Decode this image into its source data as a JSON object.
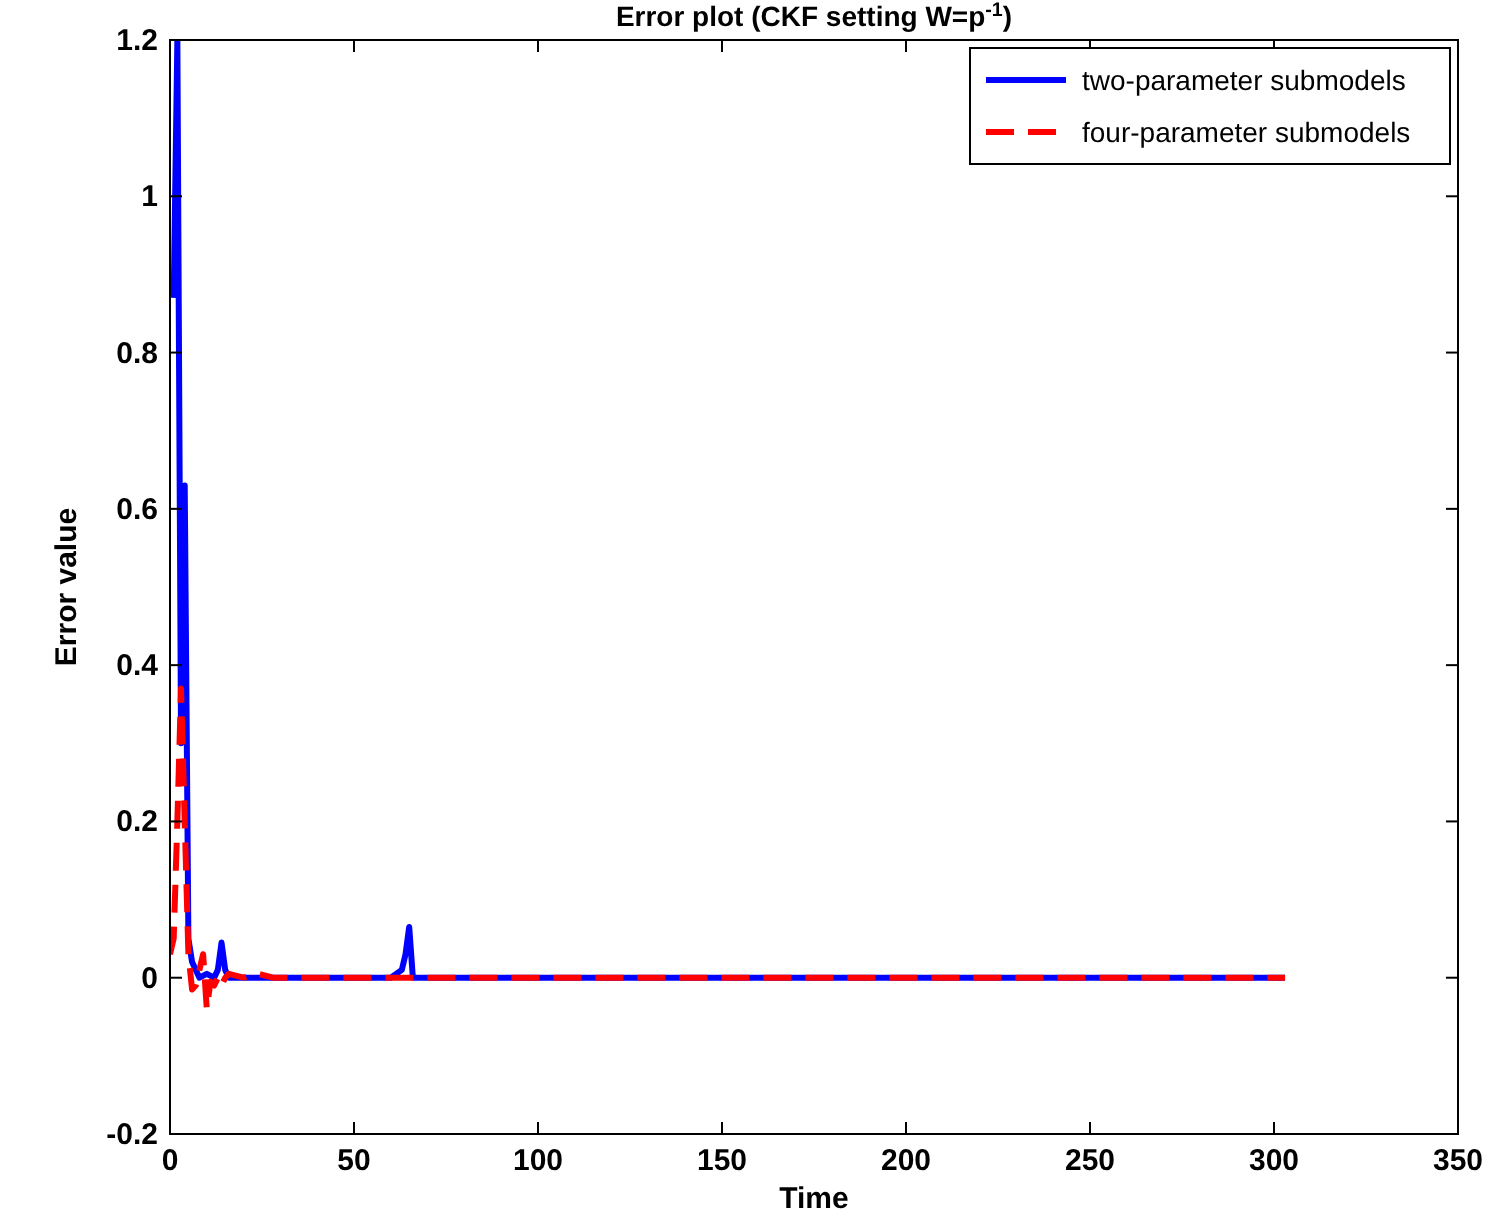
{
  "chart_data": {
    "type": "line",
    "title": "Error plot (CKF setting W=p$^{-1}$)",
    "xlabel": "Time",
    "ylabel": "Error value",
    "xlim": [
      0,
      350
    ],
    "xticks": [
      0,
      50,
      100,
      150,
      200,
      250,
      300,
      350
    ],
    "ylim": [
      -0.2,
      1.2
    ],
    "yticks": [
      -0.2,
      0,
      0.2,
      0.4,
      0.6,
      0.8,
      1,
      1.2
    ],
    "legend": "top right",
    "grid": false,
    "series": [
      {
        "name": "two-parameter submodels",
        "color": "#0000ff",
        "line_style": "solid",
        "x": [
          1,
          2,
          3,
          4,
          5,
          6,
          8,
          10,
          12,
          13,
          14,
          15,
          16,
          20,
          60,
          63,
          64,
          65,
          66,
          67,
          100,
          200,
          303
        ],
        "values": [
          0.87,
          1.2,
          0.3,
          0.63,
          0.05,
          0.02,
          0.0,
          0.005,
          0.0,
          0.01,
          0.045,
          0.01,
          0.0,
          0.0,
          0.0,
          0.01,
          0.03,
          0.065,
          0.0,
          0.0,
          0.0,
          0.0,
          0.0
        ]
      },
      {
        "name": "four-parameter submodels",
        "color": "#ff0000",
        "line_style": "dashed",
        "x": [
          0,
          1,
          2,
          3,
          4,
          5,
          6,
          7,
          8,
          9,
          10,
          11,
          12,
          13,
          14,
          15,
          16,
          20,
          24,
          28,
          100,
          200,
          303
        ],
        "values": [
          0.03,
          0.05,
          0.2,
          0.37,
          0.2,
          0.03,
          -0.015,
          -0.01,
          0.01,
          0.03,
          -0.04,
          -0.005,
          -0.01,
          0.0,
          -0.01,
          0.0,
          0.005,
          0.0,
          0.005,
          0.0,
          0.0,
          0.0,
          0.0
        ]
      }
    ]
  }
}
